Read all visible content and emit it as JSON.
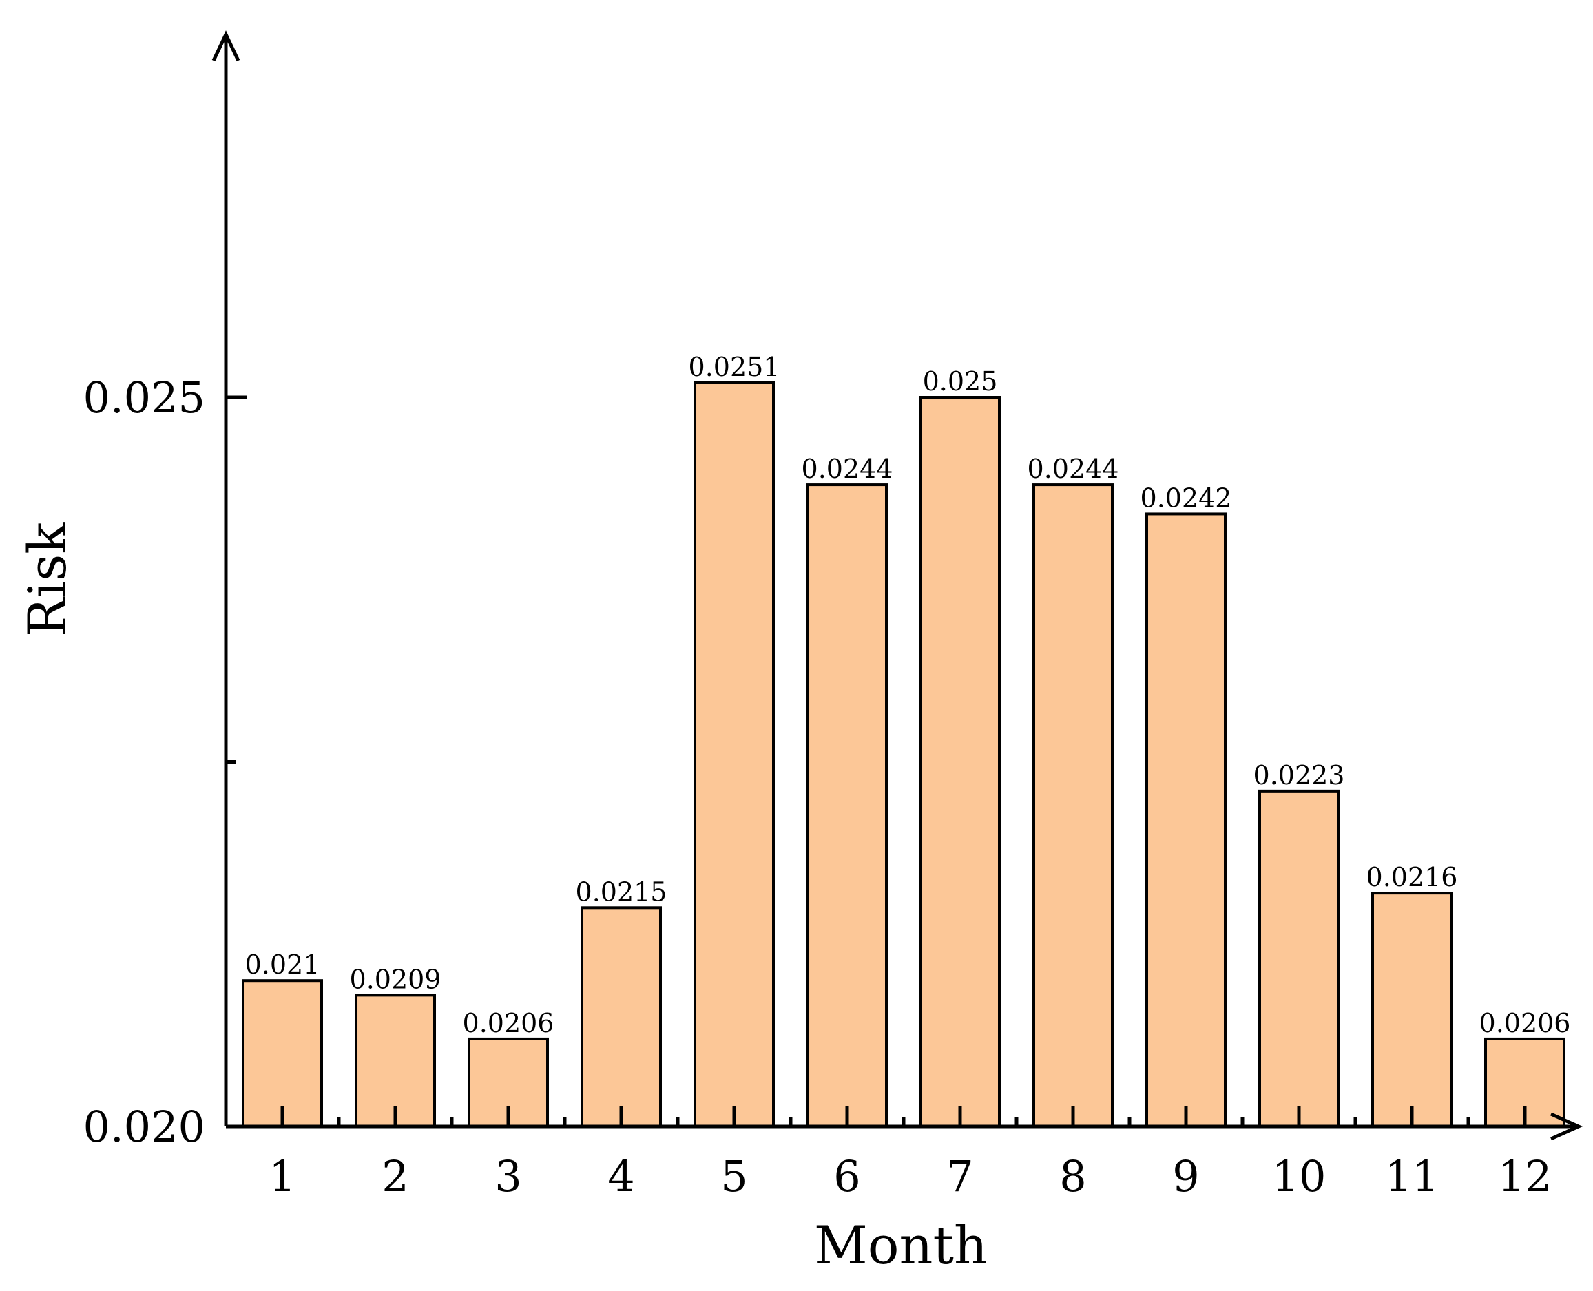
{
  "chart_data": {
    "type": "bar",
    "title": "",
    "xlabel": "Month",
    "ylabel": "Risk",
    "categories": [
      "1",
      "2",
      "3",
      "4",
      "5",
      "6",
      "7",
      "8",
      "9",
      "10",
      "11",
      "12"
    ],
    "values": [
      0.021,
      0.0209,
      0.0206,
      0.0215,
      0.0251,
      0.0244,
      0.025,
      0.0244,
      0.0242,
      0.0223,
      0.0216,
      0.0206
    ],
    "data_labels": [
      "0.021",
      "0.0209",
      "0.0206",
      "0.0215",
      "0.0251",
      "0.0244",
      "0.025",
      "0.0244",
      "0.0242",
      "0.0223",
      "0.0216",
      "0.0206"
    ],
    "ylim": [
      0.02,
      0.0275
    ],
    "yticks": [
      0.02,
      0.025
    ],
    "ytick_labels": [
      "0.020",
      "0.025"
    ],
    "y_minor_ticks": [
      0.0225
    ],
    "grid": false,
    "legend": "none",
    "bar_color": "#fcc797",
    "edge_color": "#000000"
  }
}
